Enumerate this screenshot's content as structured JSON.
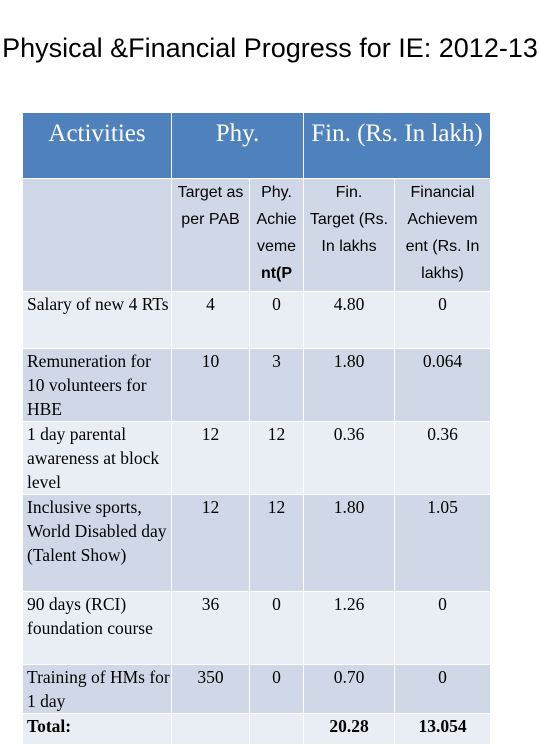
{
  "title": "Physical &Financial Progress for IE: 2012-13",
  "headers": {
    "activities": "Activities",
    "phy": "Phy.",
    "fin": "Fin. (Rs. In lakh)"
  },
  "subheaders": {
    "target_phy_line1": "Target as",
    "target_phy_line2": "per PAB",
    "achiev_phy_line1": "Phy.",
    "achiev_phy_line2": "Achie",
    "achiev_phy_line3": "veme",
    "achiev_phy_line4": "nt(P",
    "fin_target_line1": "Fin.",
    "fin_target_line2": "Target (Rs.",
    "fin_target_line3": "In lakhs",
    "fin_achiev_line1": "Financial",
    "fin_achiev_line2": "Achievem",
    "fin_achiev_line3": "ent (Rs. In",
    "fin_achiev_line4": "lakhs)"
  },
  "rows": [
    {
      "activity": "Salary of new 4 RTs",
      "phy_target": "4",
      "phy_achievement": "0",
      "fin_target": "4.80",
      "fin_achievement": "0"
    },
    {
      "activity": "Remuneration for 10 volunteers for HBE",
      "phy_target": "10",
      "phy_achievement": "3",
      "fin_target": "1.80",
      "fin_achievement": "0.064"
    },
    {
      "activity": "1 day parental awareness at block level",
      "phy_target": "12",
      "phy_achievement": "12",
      "fin_target": "0.36",
      "fin_achievement": "0.36"
    },
    {
      "activity": "Inclusive sports, World Disabled day (Talent Show)",
      "phy_target": "12",
      "phy_achievement": "12",
      "fin_target": "1.80",
      "fin_achievement": "1.05"
    },
    {
      "activity": "90 days (RCI) foundation course",
      "phy_target": "36",
      "phy_achievement": "0",
      "fin_target": "1.26",
      "fin_achievement": "0"
    },
    {
      "activity": "Training of HMs for 1 day",
      "phy_target": "350",
      "phy_achievement": "0",
      "fin_target": "0.70",
      "fin_achievement": "0"
    }
  ],
  "total": {
    "label": "Total:",
    "fin_target": "20.28",
    "fin_achievement": "13.054"
  }
}
